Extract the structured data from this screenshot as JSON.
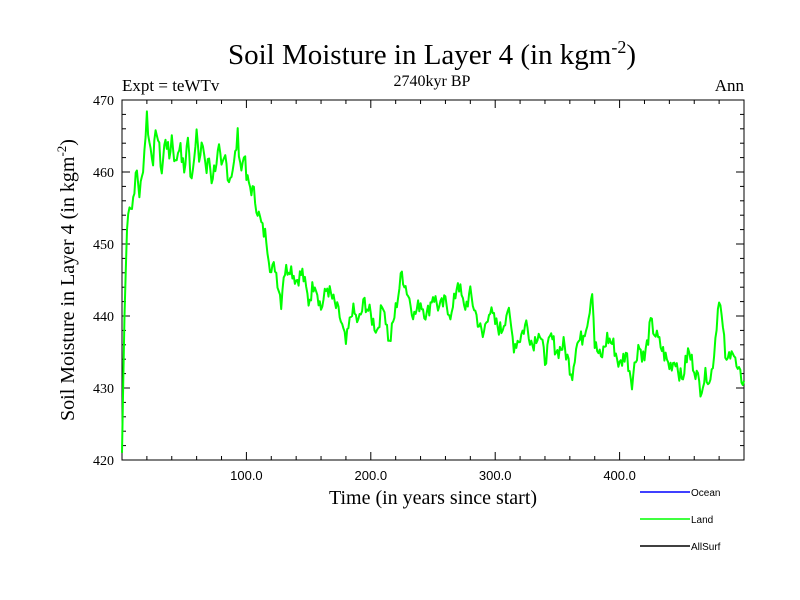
{
  "chart_data": {
    "type": "line",
    "title": "Soil Moisture in Layer 4 (in kgm",
    "title_sup": "-2",
    "title_close": ")",
    "subtitle_left": "Expt = teWTv",
    "subtitle_center": "2740kyr BP",
    "subtitle_right": "Ann",
    "xlabel": "Time (in years since start)",
    "ylabel": "Soil Moisture in Layer 4 (in kgm",
    "ylabel_sup": "-2",
    "ylabel_close": ")",
    "xlim": [
      0,
      500
    ],
    "ylim": [
      420,
      470
    ],
    "xticks": [
      100,
      200,
      300,
      400
    ],
    "xtick_labels": [
      "100.0",
      "200.0",
      "300.0",
      "400.0"
    ],
    "yticks": [
      420,
      430,
      440,
      450,
      460,
      470
    ],
    "ytick_labels": [
      "420",
      "430",
      "440",
      "450",
      "460",
      "470"
    ],
    "legend": [
      {
        "name": "Ocean",
        "color": "#0000ff"
      },
      {
        "name": "Land",
        "color": "#00ff00"
      },
      {
        "name": "AllSurf",
        "color": "#000000"
      }
    ],
    "series": [
      {
        "name": "Land",
        "color": "#00ff00",
        "x": [
          0,
          2,
          4,
          6,
          8,
          10,
          12,
          14,
          16,
          18,
          20,
          22,
          25,
          28,
          30,
          32,
          35,
          38,
          40,
          43,
          46,
          50,
          53,
          55,
          58,
          60,
          62,
          65,
          68,
          70,
          72,
          75,
          78,
          80,
          83,
          86,
          90,
          93,
          96,
          98,
          100,
          103,
          106,
          110,
          113,
          116,
          120,
          123,
          126,
          128,
          130,
          135,
          140,
          145,
          150,
          155,
          160,
          165,
          170,
          175,
          180,
          185,
          190,
          195,
          200,
          205,
          210,
          215,
          220,
          222,
          225,
          230,
          235,
          240,
          245,
          250,
          255,
          260,
          265,
          270,
          275,
          280,
          285,
          290,
          295,
          300,
          305,
          310,
          315,
          320,
          325,
          330,
          335,
          340,
          345,
          350,
          355,
          360,
          362,
          365,
          370,
          375,
          378,
          380,
          385,
          390,
          395,
          400,
          405,
          410,
          415,
          420,
          425,
          430,
          435,
          440,
          445,
          450,
          455,
          460,
          465,
          470,
          473,
          476,
          478,
          480,
          483,
          486,
          490,
          495,
          500
        ],
        "values": [
          421,
          440,
          452,
          456,
          455,
          458,
          460,
          457,
          459,
          463,
          468,
          464,
          462,
          466,
          463,
          460,
          465,
          462,
          465,
          461,
          464,
          460,
          465,
          459,
          462,
          467,
          461,
          464,
          460,
          462,
          459,
          461,
          463,
          460,
          462,
          459,
          461,
          465,
          460,
          463,
          459,
          458,
          457,
          454,
          452,
          451,
          446,
          447,
          444,
          442,
          446,
          447,
          445,
          446,
          442,
          445,
          441,
          444,
          442,
          440,
          436,
          441,
          439,
          442,
          440,
          438,
          442,
          436,
          441,
          443,
          446,
          443,
          440,
          442,
          440,
          443,
          441,
          442,
          440,
          445,
          441,
          443,
          440,
          437,
          441,
          439,
          438,
          441,
          436,
          437,
          439,
          436,
          438,
          434,
          437,
          435,
          436,
          433,
          432,
          436,
          437,
          440,
          444,
          436,
          434,
          437,
          436,
          433,
          435,
          431,
          436,
          434,
          439,
          437,
          435,
          433,
          434,
          431,
          435,
          433,
          430,
          432,
          431,
          435,
          439,
          443,
          438,
          433,
          436,
          432,
          431
        ]
      }
    ]
  }
}
